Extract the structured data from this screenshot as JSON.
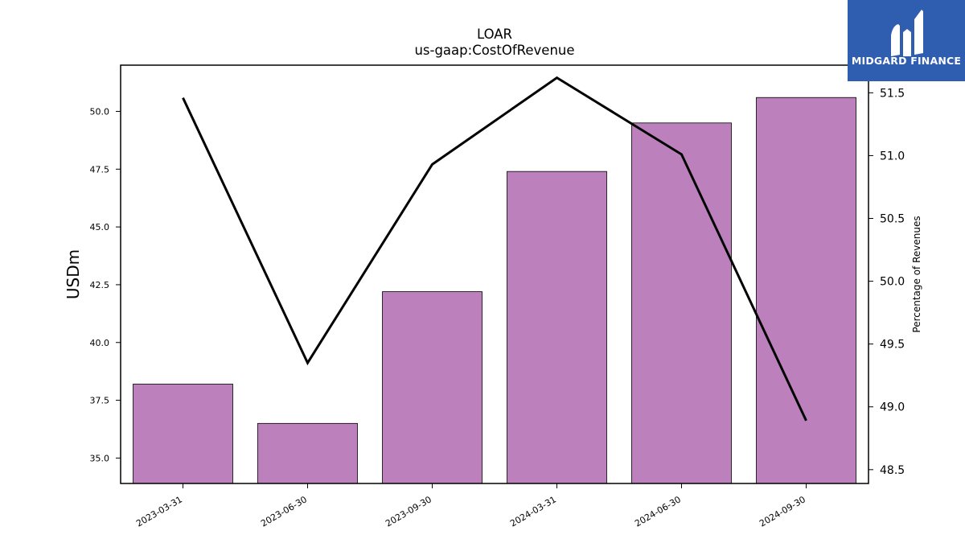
{
  "chart_data": {
    "type": "bar",
    "title": "LOAR",
    "subtitle": "us-gaap:CostOfRevenue",
    "categories": [
      "2023-03-31",
      "2023-06-30",
      "2023-09-30",
      "2024-03-31",
      "2024-06-30",
      "2024-09-30"
    ],
    "series": [
      {
        "type": "bar",
        "axis": "left",
        "values": [
          38.2,
          36.5,
          42.2,
          47.4,
          49.5,
          50.6
        ]
      },
      {
        "type": "line",
        "axis": "right",
        "values": [
          51.46,
          49.35,
          50.93,
          51.62,
          51.01,
          48.89
        ]
      }
    ],
    "ylabel": "USDm",
    "ylabel_right": "Percentage of Revenues",
    "ylim": [
      33.9,
      52.0
    ],
    "ylim_right": [
      48.39,
      51.72
    ],
    "yticks": [
      "35.0",
      "37.5",
      "40.0",
      "42.5",
      "45.0",
      "47.5",
      "50.0"
    ],
    "yticks_right": [
      "48.5",
      "49.0",
      "49.5",
      "50.0",
      "50.5",
      "51.0",
      "51.5"
    ],
    "grid": false,
    "colors": {
      "bar": "#bc80bd",
      "line": "#000000"
    }
  },
  "logo": {
    "text": "MIDGARD FINANCE",
    "background": "#2f5db0"
  }
}
